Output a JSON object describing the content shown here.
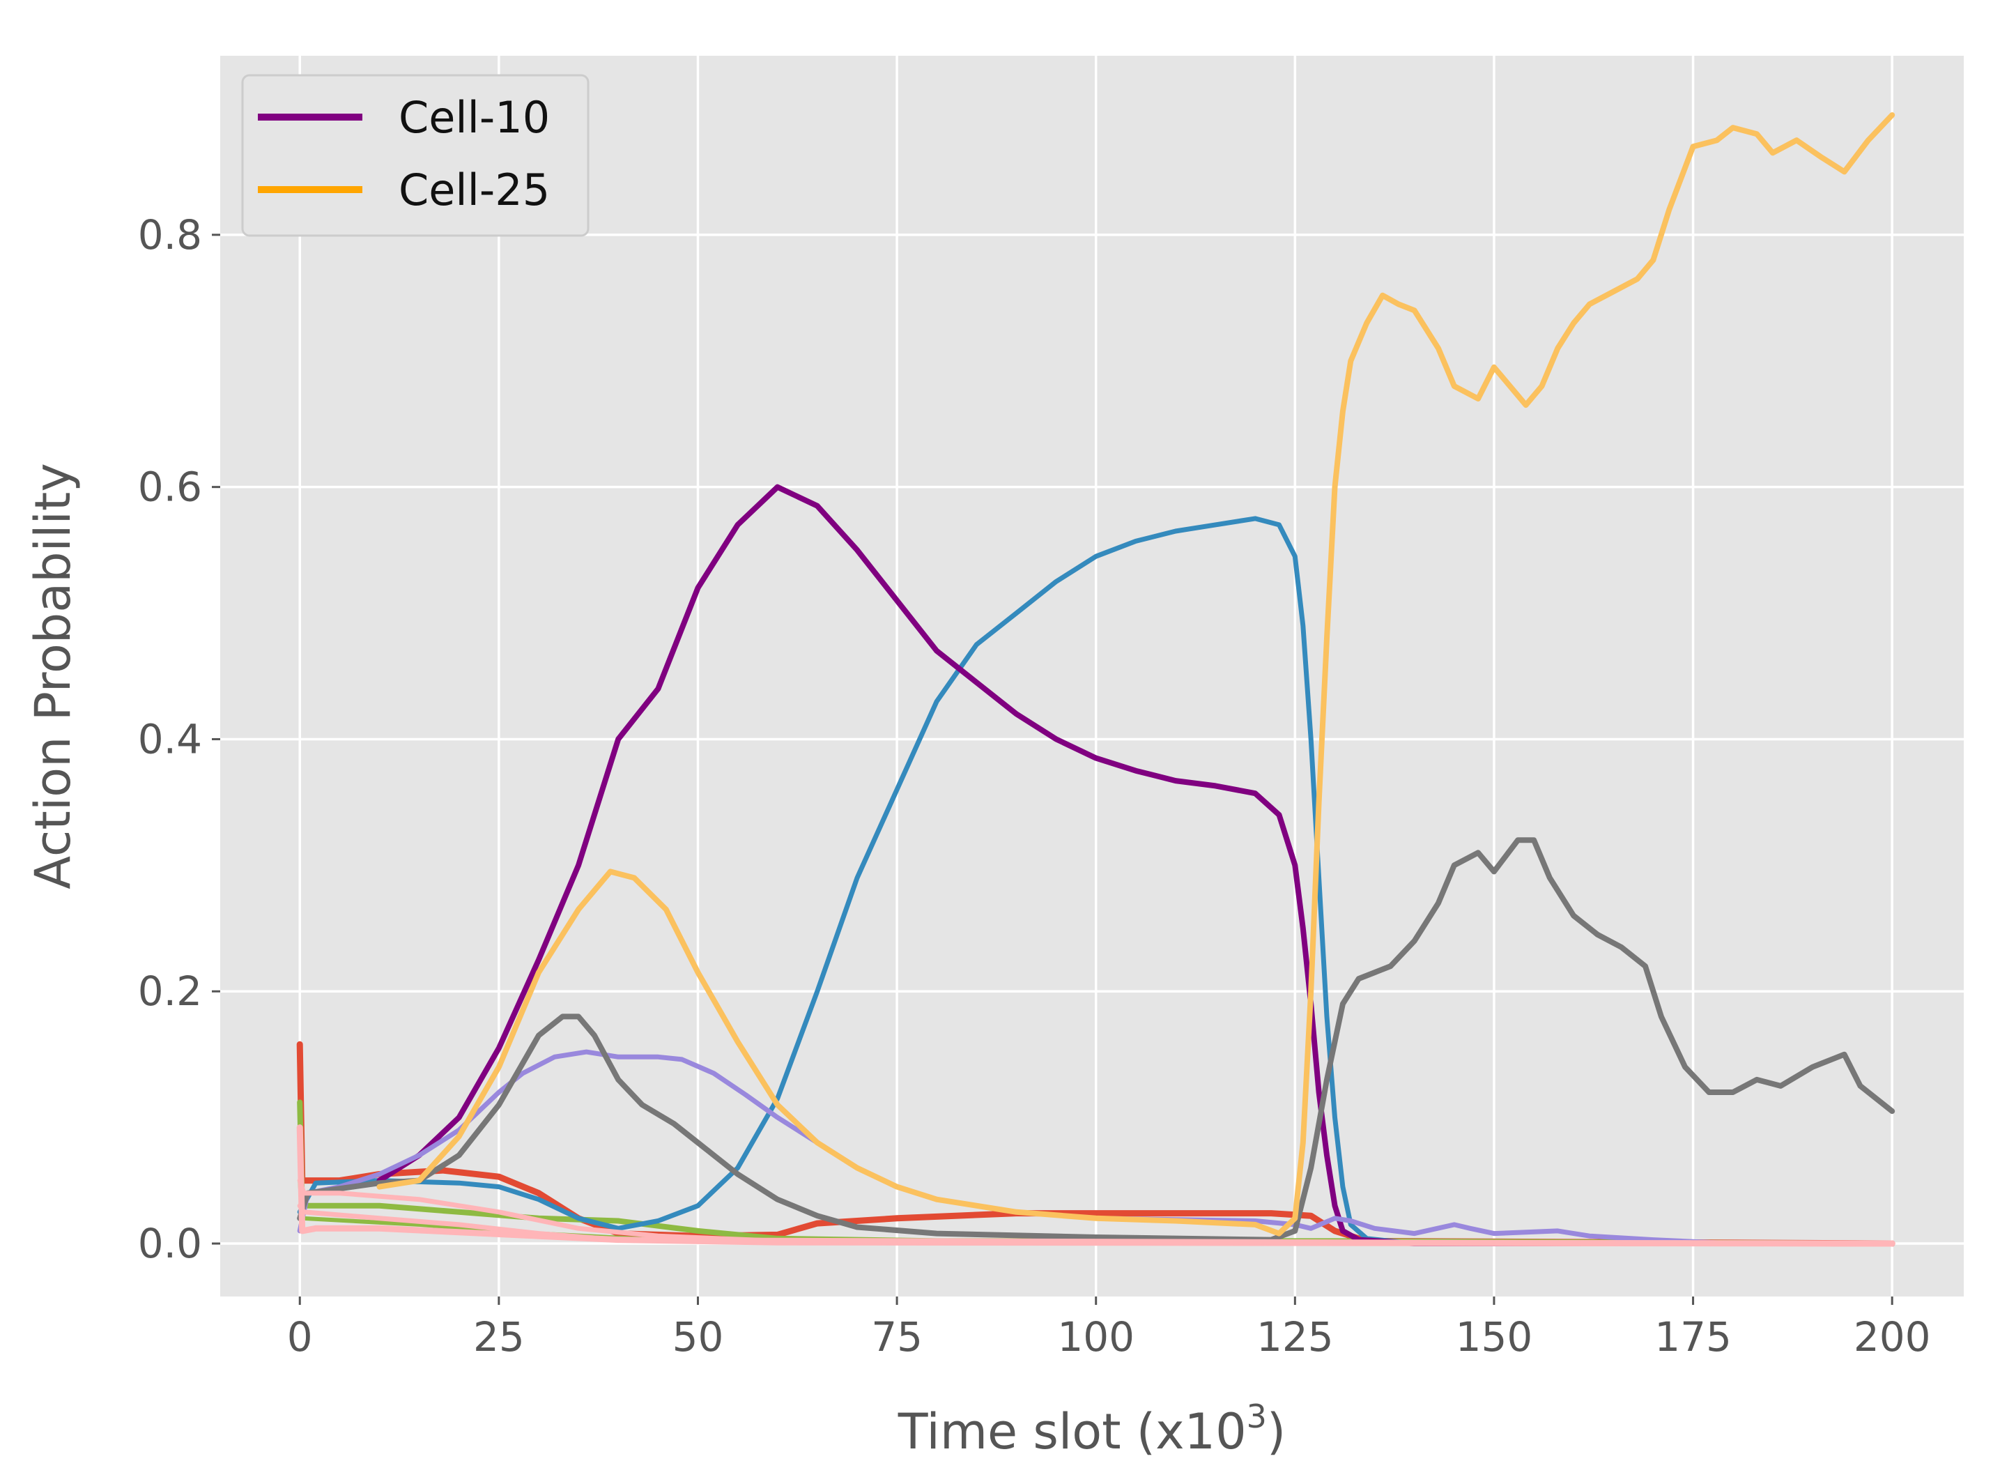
{
  "chart_data": {
    "type": "line",
    "title": "",
    "xlabel": "Time slot (x10",
    "xlabel_sup": "3",
    "xlabel_end": ")",
    "ylabel": "Action Probability",
    "xlim": [
      -10,
      209
    ],
    "ylim": [
      -0.042,
      0.942
    ],
    "xticks": [
      0,
      25,
      50,
      75,
      100,
      125,
      150,
      175,
      200
    ],
    "xtick_labels": [
      "0",
      "25",
      "50",
      "75",
      "100",
      "125",
      "150",
      "175",
      "200"
    ],
    "yticks": [
      0.0,
      0.2,
      0.4,
      0.6,
      0.8
    ],
    "ytick_labels": [
      "0.0",
      "0.2",
      "0.4",
      "0.6",
      "0.8"
    ],
    "grid": true,
    "background": "#e5e5e5",
    "legend_position": "top-left",
    "series": [
      {
        "name": "",
        "color": "#e24a33",
        "width": 9,
        "points": [
          [
            0,
            0.158
          ],
          [
            0.3,
            0.05
          ],
          [
            5,
            0.05
          ],
          [
            10,
            0.055
          ],
          [
            18,
            0.058
          ],
          [
            25,
            0.053
          ],
          [
            30,
            0.04
          ],
          [
            35,
            0.02
          ],
          [
            40,
            0.008
          ],
          [
            50,
            0.006
          ],
          [
            60,
            0.007
          ],
          [
            65,
            0.016
          ],
          [
            75,
            0.02
          ],
          [
            90,
            0.024
          ],
          [
            110,
            0.024
          ],
          [
            122,
            0.024
          ],
          [
            127,
            0.022
          ],
          [
            130,
            0.01
          ],
          [
            134,
            0.002
          ],
          [
            200,
            0.0
          ]
        ]
      },
      {
        "name": "",
        "color": "#8eba42",
        "width": 8,
        "points": [
          [
            0,
            0.112
          ],
          [
            0.3,
            0.03
          ],
          [
            10,
            0.03
          ],
          [
            20,
            0.025
          ],
          [
            30,
            0.02
          ],
          [
            40,
            0.018
          ],
          [
            50,
            0.01
          ],
          [
            60,
            0.004
          ],
          [
            80,
            0.002
          ],
          [
            130,
            0.002
          ],
          [
            200,
            0.0
          ]
        ]
      },
      {
        "name": "",
        "color": "#8eba42",
        "width": 6,
        "points": [
          [
            0,
            0.05
          ],
          [
            0.3,
            0.02
          ],
          [
            15,
            0.015
          ],
          [
            30,
            0.008
          ],
          [
            45,
            0.003
          ],
          [
            70,
            0.001
          ],
          [
            200,
            0.0
          ]
        ]
      },
      {
        "name": "",
        "color": "#348abd",
        "width": 7,
        "points": [
          [
            0,
            0.025
          ],
          [
            2,
            0.048
          ],
          [
            10,
            0.05
          ],
          [
            20,
            0.048
          ],
          [
            25,
            0.045
          ],
          [
            30,
            0.035
          ],
          [
            35,
            0.02
          ],
          [
            40,
            0.012
          ],
          [
            45,
            0.018
          ],
          [
            50,
            0.03
          ],
          [
            55,
            0.06
          ],
          [
            60,
            0.115
          ],
          [
            65,
            0.2
          ],
          [
            70,
            0.29
          ],
          [
            75,
            0.36
          ],
          [
            80,
            0.43
          ],
          [
            85,
            0.475
          ],
          [
            90,
            0.5
          ],
          [
            95,
            0.525
          ],
          [
            100,
            0.545
          ],
          [
            105,
            0.557
          ],
          [
            110,
            0.565
          ],
          [
            115,
            0.57
          ],
          [
            120,
            0.575
          ],
          [
            123,
            0.57
          ],
          [
            125,
            0.545
          ],
          [
            126,
            0.49
          ],
          [
            127,
            0.4
          ],
          [
            128,
            0.29
          ],
          [
            129,
            0.18
          ],
          [
            130,
            0.1
          ],
          [
            131,
            0.045
          ],
          [
            132,
            0.015
          ],
          [
            134,
            0.004
          ],
          [
            140,
            0.0
          ],
          [
            200,
            0.0
          ]
        ]
      },
      {
        "name": "Cell-10",
        "color": "#800080",
        "width": 8,
        "points": [
          [
            10,
            0.05
          ],
          [
            15,
            0.07
          ],
          [
            20,
            0.1
          ],
          [
            25,
            0.155
          ],
          [
            30,
            0.225
          ],
          [
            35,
            0.3
          ],
          [
            40,
            0.4
          ],
          [
            45,
            0.44
          ],
          [
            50,
            0.52
          ],
          [
            55,
            0.57
          ],
          [
            60,
            0.6
          ],
          [
            65,
            0.585
          ],
          [
            70,
            0.55
          ],
          [
            75,
            0.51
          ],
          [
            80,
            0.47
          ],
          [
            85,
            0.445
          ],
          [
            90,
            0.42
          ],
          [
            95,
            0.4
          ],
          [
            100,
            0.385
          ],
          [
            105,
            0.375
          ],
          [
            110,
            0.367
          ],
          [
            115,
            0.363
          ],
          [
            120,
            0.357
          ],
          [
            123,
            0.34
          ],
          [
            125,
            0.3
          ],
          [
            126,
            0.25
          ],
          [
            127,
            0.19
          ],
          [
            128,
            0.12
          ],
          [
            129,
            0.07
          ],
          [
            130,
            0.03
          ],
          [
            131,
            0.01
          ],
          [
            133,
            0.003
          ],
          [
            140,
            0.0
          ],
          [
            200,
            0.0
          ]
        ]
      },
      {
        "name": "",
        "color": "#9988dd",
        "width": 7,
        "points": [
          [
            0,
            0.01
          ],
          [
            1,
            0.04
          ],
          [
            5,
            0.045
          ],
          [
            10,
            0.055
          ],
          [
            15,
            0.07
          ],
          [
            20,
            0.09
          ],
          [
            25,
            0.12
          ],
          [
            28,
            0.135
          ],
          [
            32,
            0.148
          ],
          [
            36,
            0.152
          ],
          [
            40,
            0.148
          ],
          [
            45,
            0.148
          ],
          [
            48,
            0.146
          ],
          [
            52,
            0.135
          ],
          [
            56,
            0.118
          ],
          [
            60,
            0.1
          ],
          [
            65,
            0.08
          ],
          [
            70,
            0.06
          ],
          [
            75,
            0.045
          ],
          [
            80,
            0.035
          ],
          [
            90,
            0.025
          ],
          [
            100,
            0.02
          ],
          [
            120,
            0.018
          ],
          [
            125,
            0.015
          ],
          [
            127,
            0.012
          ],
          [
            130,
            0.02
          ],
          [
            132,
            0.018
          ],
          [
            135,
            0.012
          ],
          [
            140,
            0.008
          ],
          [
            145,
            0.015
          ],
          [
            147,
            0.012
          ],
          [
            150,
            0.008
          ],
          [
            158,
            0.01
          ],
          [
            162,
            0.006
          ],
          [
            170,
            0.003
          ],
          [
            180,
            0.0
          ],
          [
            200,
            0.0
          ]
        ]
      },
      {
        "name": "",
        "color": "#777777",
        "width": 8,
        "points": [
          [
            0,
            0.02
          ],
          [
            1,
            0.04
          ],
          [
            10,
            0.048
          ],
          [
            15,
            0.05
          ],
          [
            20,
            0.07
          ],
          [
            25,
            0.11
          ],
          [
            30,
            0.165
          ],
          [
            33,
            0.18
          ],
          [
            35,
            0.18
          ],
          [
            37,
            0.165
          ],
          [
            40,
            0.13
          ],
          [
            43,
            0.11
          ],
          [
            47,
            0.095
          ],
          [
            50,
            0.08
          ],
          [
            55,
            0.055
          ],
          [
            60,
            0.035
          ],
          [
            65,
            0.022
          ],
          [
            70,
            0.013
          ],
          [
            80,
            0.008
          ],
          [
            100,
            0.005
          ],
          [
            122,
            0.003
          ],
          [
            125,
            0.01
          ],
          [
            127,
            0.06
          ],
          [
            129,
            0.13
          ],
          [
            131,
            0.19
          ],
          [
            133,
            0.21
          ],
          [
            135,
            0.215
          ],
          [
            137,
            0.22
          ],
          [
            140,
            0.24
          ],
          [
            143,
            0.27
          ],
          [
            145,
            0.3
          ],
          [
            148,
            0.31
          ],
          [
            150,
            0.295
          ],
          [
            153,
            0.32
          ],
          [
            155,
            0.32
          ],
          [
            157,
            0.29
          ],
          [
            160,
            0.26
          ],
          [
            163,
            0.245
          ],
          [
            166,
            0.235
          ],
          [
            169,
            0.22
          ],
          [
            171,
            0.18
          ],
          [
            174,
            0.14
          ],
          [
            177,
            0.12
          ],
          [
            180,
            0.12
          ],
          [
            183,
            0.13
          ],
          [
            186,
            0.125
          ],
          [
            190,
            0.14
          ],
          [
            194,
            0.15
          ],
          [
            196,
            0.125
          ],
          [
            200,
            0.105
          ]
        ]
      },
      {
        "name": "Cell-25",
        "color": "#fbc15e",
        "width": 8,
        "points": [
          [
            10,
            0.045
          ],
          [
            15,
            0.05
          ],
          [
            20,
            0.085
          ],
          [
            25,
            0.14
          ],
          [
            30,
            0.215
          ],
          [
            35,
            0.265
          ],
          [
            39,
            0.295
          ],
          [
            42,
            0.29
          ],
          [
            46,
            0.265
          ],
          [
            50,
            0.215
          ],
          [
            55,
            0.16
          ],
          [
            60,
            0.11
          ],
          [
            65,
            0.08
          ],
          [
            70,
            0.06
          ],
          [
            75,
            0.045
          ],
          [
            80,
            0.035
          ],
          [
            90,
            0.025
          ],
          [
            100,
            0.02
          ],
          [
            110,
            0.018
          ],
          [
            120,
            0.015
          ],
          [
            123,
            0.008
          ],
          [
            125,
            0.02
          ],
          [
            126,
            0.08
          ],
          [
            127,
            0.2
          ],
          [
            128,
            0.35
          ],
          [
            129,
            0.48
          ],
          [
            130,
            0.6
          ],
          [
            131,
            0.66
          ],
          [
            132,
            0.7
          ],
          [
            134,
            0.73
          ],
          [
            136,
            0.752
          ],
          [
            138,
            0.745
          ],
          [
            140,
            0.74
          ],
          [
            143,
            0.71
          ],
          [
            145,
            0.68
          ],
          [
            148,
            0.67
          ],
          [
            150,
            0.695
          ],
          [
            152,
            0.68
          ],
          [
            154,
            0.665
          ],
          [
            156,
            0.68
          ],
          [
            158,
            0.71
          ],
          [
            160,
            0.73
          ],
          [
            162,
            0.745
          ],
          [
            165,
            0.755
          ],
          [
            168,
            0.765
          ],
          [
            170,
            0.78
          ],
          [
            172,
            0.82
          ],
          [
            175,
            0.87
          ],
          [
            178,
            0.875
          ],
          [
            180,
            0.885
          ],
          [
            183,
            0.88
          ],
          [
            185,
            0.865
          ],
          [
            188,
            0.875
          ],
          [
            191,
            0.862
          ],
          [
            194,
            0.85
          ],
          [
            197,
            0.875
          ],
          [
            200,
            0.895
          ]
        ]
      },
      {
        "name": "",
        "color": "#ffb5b8",
        "width": 9,
        "points": [
          [
            0,
            0.092
          ],
          [
            0.3,
            0.01
          ],
          [
            2,
            0.012
          ],
          [
            10,
            0.012
          ],
          [
            20,
            0.009
          ],
          [
            30,
            0.006
          ],
          [
            40,
            0.003
          ],
          [
            60,
            0.001
          ],
          [
            200,
            0.0
          ]
        ]
      },
      {
        "name": "",
        "color": "#ffb5b8",
        "width": 7,
        "points": [
          [
            0,
            0.05
          ],
          [
            0.5,
            0.04
          ],
          [
            5,
            0.04
          ],
          [
            15,
            0.035
          ],
          [
            25,
            0.025
          ],
          [
            35,
            0.012
          ],
          [
            45,
            0.006
          ],
          [
            60,
            0.002
          ],
          [
            200,
            0.0
          ]
        ]
      },
      {
        "name": "",
        "color": "#ffb5b8",
        "width": 7,
        "points": [
          [
            0,
            0.03
          ],
          [
            0.5,
            0.025
          ],
          [
            10,
            0.02
          ],
          [
            20,
            0.015
          ],
          [
            30,
            0.008
          ],
          [
            40,
            0.003
          ],
          [
            200,
            0.0
          ]
        ]
      }
    ],
    "legend": [
      {
        "label": "Cell-10",
        "color": "#800080"
      },
      {
        "label": "Cell-25",
        "color": "#ffa500"
      }
    ]
  }
}
